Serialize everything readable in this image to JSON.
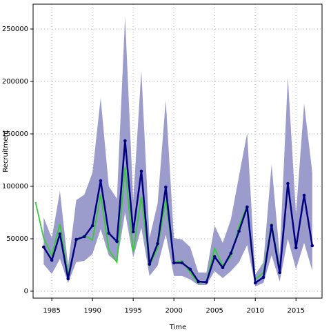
{
  "chart_data": {
    "type": "line",
    "x_label": "Time",
    "y_label": "Recruitment",
    "x": [
      1983,
      1984,
      1985,
      1986,
      1987,
      1988,
      1989,
      1990,
      1991,
      1992,
      1993,
      1994,
      1995,
      1996,
      1997,
      1998,
      1999,
      2000,
      2001,
      2002,
      2003,
      2004,
      2005,
      2006,
      2007,
      2008,
      2009,
      2010,
      2011,
      2012,
      2013,
      2014,
      2015,
      2016,
      2017
    ],
    "band": {
      "color": "#9c9ccc",
      "upper": [
        null,
        70400,
        50700,
        95400,
        24300,
        86800,
        92100,
        113200,
        184200,
        100000,
        88200,
        261800,
        86800,
        210500,
        50700,
        83600,
        182200,
        50700,
        49300,
        42100,
        17800,
        17800,
        62500,
        46100,
        68400,
        109900,
        150700,
        15800,
        27600,
        121100,
        34200,
        203900,
        73700,
        179000,
        113200
      ],
      "lower": [
        null,
        25700,
        16400,
        30900,
        7900,
        27600,
        28900,
        35500,
        59200,
        34200,
        27600,
        75000,
        32200,
        60500,
        14500,
        24300,
        53900,
        14500,
        14500,
        11200,
        5900,
        5900,
        19100,
        12500,
        19100,
        27600,
        44100,
        4600,
        7900,
        34200,
        9200,
        50000,
        21000,
        46100,
        19700
      ]
    },
    "series": [
      {
        "color": "#33cc33",
        "values": [
          84900,
          50700,
          34200,
          63800,
          15800,
          48000,
          53300,
          48700,
          92100,
          39500,
          27600,
          118400,
          37500,
          90100,
          24300,
          40800,
          86800,
          27600,
          28900,
          17800,
          7900,
          9200,
          40800,
          24300,
          32900,
          61800,
          81600,
          11200,
          17800,
          65100,
          21000,
          null,
          null,
          null,
          null
        ]
      },
      {
        "color": "#000080",
        "markers": true,
        "values": [
          null,
          42100,
          29600,
          54600,
          11800,
          49300,
          52000,
          62500,
          105300,
          55300,
          47400,
          143400,
          56600,
          114500,
          25700,
          45400,
          99300,
          27000,
          27000,
          21000,
          9200,
          8600,
          32900,
          22400,
          36200,
          57200,
          80300,
          7900,
          13200,
          62500,
          17800,
          102600,
          41400,
          91400,
          43400
        ]
      }
    ],
    "xlim": [
      1982.7,
      2018.2
    ],
    "xticks": [
      1985,
      1990,
      1995,
      2000,
      2005,
      2010,
      2015
    ],
    "ylim": [
      -6600,
      273700
    ],
    "yticks": [
      0,
      50000,
      100000,
      150000,
      200000,
      250000
    ],
    "grid": true
  }
}
